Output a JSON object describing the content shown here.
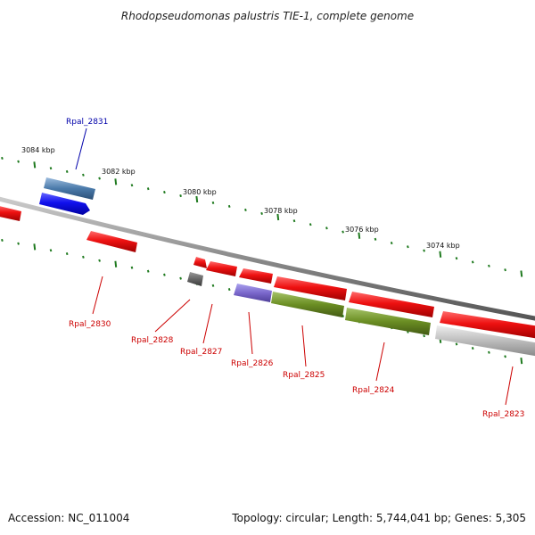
{
  "title": "Rhodopseudomonas palustris TIE-1, complete genome",
  "footer": {
    "accession": "Accession: NC_011004",
    "summary": "Topology: circular; Length: 5,744,041 bp; Genes: 5,305"
  },
  "colors": {
    "backbone": "#8a8a8a",
    "tick": "#1f7a1f",
    "gene_label_forward": "#cc0000",
    "gene_label_reverse": "#0000aa",
    "cds_red": "#ee1111",
    "cds_blue": "#2222ee",
    "cds_steelblue": "#4a7aaa",
    "cds_olive": "#6b8e23",
    "cds_lavender": "#7b68cc",
    "cds_gray": "#666666",
    "cds_lightgray": "#bbbbbb"
  },
  "kbp_labels": [
    "3084 kbp",
    "3082 kbp",
    "3080 kbp",
    "3078 kbp",
    "3076 kbp",
    "3074 kbp"
  ],
  "genes": [
    {
      "name": "Rpal_2831",
      "color": "steelblue"
    },
    {
      "name": "Rpal_2830",
      "color": "red"
    },
    {
      "name": "Rpal_2828",
      "color": "red"
    },
    {
      "name": "Rpal_2827",
      "color": "gray"
    },
    {
      "name": "Rpal_2826",
      "color": "red"
    },
    {
      "name": "Rpal_2825",
      "color": "red"
    },
    {
      "name": "Rpal_2824",
      "color": "red"
    },
    {
      "name": "Rpal_2823",
      "color": "red"
    }
  ]
}
